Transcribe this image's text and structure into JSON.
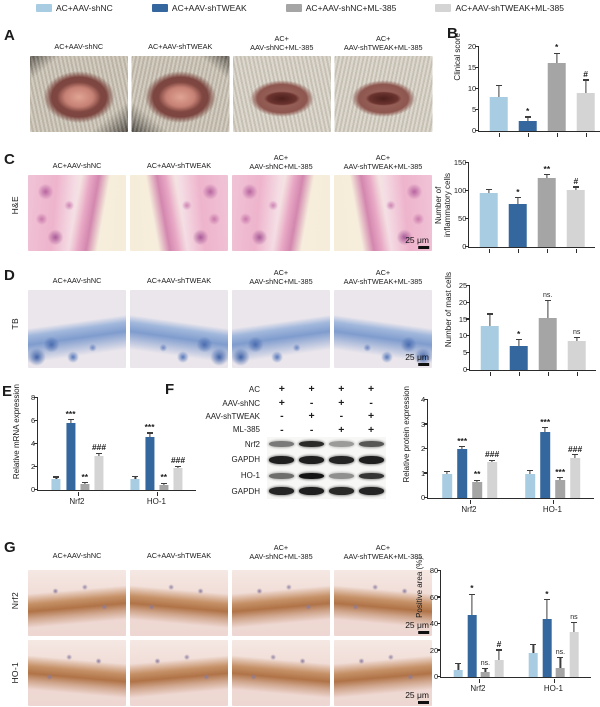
{
  "legend": {
    "items": [
      {
        "label": "AC+AAV-shNC",
        "color": "#a8cce2"
      },
      {
        "label": "AC+AAV-shTWEAK",
        "color": "#34679e"
      },
      {
        "label": "AC+AAV-shNC+ML-385",
        "color": "#a5a5a5"
      },
      {
        "label": "AC+AAV-shTWEAK+ML-385",
        "color": "#d4d4d4"
      }
    ]
  },
  "letters": {
    "A": "A",
    "B": "B",
    "C": "C",
    "D": "D",
    "E": "E",
    "F": "F",
    "G": "G"
  },
  "side_labels": {
    "he": "H&E",
    "tb": "TB",
    "g_row1": "Nrf2",
    "g_row2": "HO-1"
  },
  "columns": [
    {
      "top": "",
      "bottom": "AC+AAV-shNC"
    },
    {
      "top": "",
      "bottom": "AC+AAV-shTWEAK"
    },
    {
      "top": "AC+",
      "bottom": "AAV-shNC+ML-385"
    },
    {
      "top": "AC+",
      "bottom": "AAV-shTWEAK+ML-385"
    }
  ],
  "scale_bar": "25 μm",
  "wb": {
    "condition_rows": [
      {
        "name": "AC",
        "vals": [
          "+",
          "+",
          "+",
          "+"
        ]
      },
      {
        "name": "AAV-shNC",
        "vals": [
          "+",
          "-",
          "+",
          "-"
        ]
      },
      {
        "name": "AAV-shTWEAK",
        "vals": [
          "-",
          "+",
          "-",
          "+"
        ]
      },
      {
        "name": "ML-385",
        "vals": [
          "-",
          "-",
          "+",
          "+"
        ]
      }
    ],
    "blot_rows": [
      {
        "name": "Nrf2",
        "intensities": [
          0.55,
          0.9,
          0.4,
          0.7
        ],
        "gapdh": false
      },
      {
        "name": "GAPDH",
        "intensities": [
          0.95,
          0.95,
          0.92,
          0.95
        ],
        "gapdh": true
      },
      {
        "name": "HO-1",
        "intensities": [
          0.6,
          1.0,
          0.45,
          0.85
        ],
        "gapdh": false
      },
      {
        "name": "GAPDH",
        "intensities": [
          0.92,
          0.95,
          0.9,
          0.92
        ],
        "gapdh": true
      }
    ]
  },
  "chart_data": [
    {
      "id": "clinical_score",
      "panel": "B",
      "type": "bar",
      "title": "",
      "xlabel": "",
      "ylabel": "Clinical score",
      "ylim": [
        0,
        20
      ],
      "yticks": [
        0,
        5,
        10,
        15,
        20
      ],
      "categories": [
        ""
      ],
      "series": [
        {
          "name": "AC+AAV-shNC",
          "values": [
            8
          ],
          "errors": [
            2.7
          ],
          "sig": [
            ""
          ]
        },
        {
          "name": "AC+AAV-shTWEAK",
          "values": [
            2.4
          ],
          "errors": [
            0.8
          ],
          "sig": [
            "*"
          ]
        },
        {
          "name": "AC+AAV-shNC+ML-385",
          "values": [
            16.2
          ],
          "errors": [
            2.2
          ],
          "sig": [
            "*"
          ]
        },
        {
          "name": "AC+AAV-shTWEAK+ML-385",
          "values": [
            9
          ],
          "errors": [
            3
          ],
          "sig": [
            "#"
          ]
        }
      ]
    },
    {
      "id": "inflammatory",
      "panel": "C",
      "type": "bar",
      "title": "",
      "xlabel": "",
      "ylabel": "Number of inflammatory cells",
      "ylim": [
        0,
        150
      ],
      "yticks": [
        0,
        50,
        100,
        150
      ],
      "categories": [
        ""
      ],
      "series": [
        {
          "name": "AC+AAV-shNC",
          "values": [
            97
          ],
          "errors": [
            4
          ],
          "sig": [
            ""
          ]
        },
        {
          "name": "AC+AAV-shTWEAK",
          "values": [
            76
          ],
          "errors": [
            11
          ],
          "sig": [
            "*"
          ]
        },
        {
          "name": "AC+AAV-shNC+ML-385",
          "values": [
            123
          ],
          "errors": [
            5
          ],
          "sig": [
            "**"
          ]
        },
        {
          "name": "AC+AAV-shTWEAK+ML-385",
          "values": [
            101
          ],
          "errors": [
            5
          ],
          "sig": [
            "#"
          ]
        }
      ]
    },
    {
      "id": "mast",
      "panel": "D",
      "type": "bar",
      "title": "",
      "xlabel": "",
      "ylabel": "Number of mast cells",
      "ylim": [
        0,
        25
      ],
      "yticks": [
        0,
        5,
        10,
        15,
        20,
        25
      ],
      "categories": [
        ""
      ],
      "series": [
        {
          "name": "AC+AAV-shNC",
          "values": [
            13
          ],
          "errors": [
            3.5
          ],
          "sig": [
            ""
          ]
        },
        {
          "name": "AC+AAV-shTWEAK",
          "values": [
            7.2
          ],
          "errors": [
            1.7
          ],
          "sig": [
            "*"
          ]
        },
        {
          "name": "AC+AAV-shNC+ML-385",
          "values": [
            15.5
          ],
          "errors": [
            5
          ],
          "sig": [
            "ns."
          ]
        },
        {
          "name": "AC+AAV-shTWEAK+ML-385",
          "values": [
            8.5
          ],
          "errors": [
            1
          ],
          "sig": [
            "ns"
          ]
        }
      ]
    },
    {
      "id": "mrna",
      "panel": "E",
      "type": "bar",
      "title": "",
      "xlabel": "",
      "ylabel": "Relative mRNA expression",
      "ylim": [
        0,
        8
      ],
      "yticks": [
        0,
        2,
        4,
        6,
        8
      ],
      "categories": [
        "Nrf2",
        "HO-1"
      ],
      "series": [
        {
          "name": "AC+AAV-shNC",
          "values": [
            1.0,
            1.0
          ],
          "errors": [
            0.08,
            0.1
          ],
          "sig": [
            "",
            ""
          ]
        },
        {
          "name": "AC+AAV-shTWEAK",
          "values": [
            5.8,
            4.6
          ],
          "errors": [
            0.25,
            0.3
          ],
          "sig": [
            "***",
            "***"
          ]
        },
        {
          "name": "AC+AAV-shNC+ML-385",
          "values": [
            0.5,
            0.45
          ],
          "errors": [
            0.08,
            0.08
          ],
          "sig": [
            "**",
            "**"
          ]
        },
        {
          "name": "AC+AAV-shTWEAK+ML-385",
          "values": [
            3.0,
            1.9
          ],
          "errors": [
            0.15,
            0.12
          ],
          "sig": [
            "###",
            "###"
          ]
        }
      ]
    },
    {
      "id": "protein",
      "panel": "F",
      "type": "bar",
      "title": "",
      "xlabel": "",
      "ylabel": "Relative protein expression",
      "ylim": [
        0,
        4
      ],
      "yticks": [
        0,
        1,
        2,
        3,
        4
      ],
      "categories": [
        "Nrf2",
        "HO-1"
      ],
      "series": [
        {
          "name": "AC+AAV-shNC",
          "values": [
            1.0,
            1.0
          ],
          "errors": [
            0.06,
            0.1
          ],
          "sig": [
            "",
            ""
          ]
        },
        {
          "name": "AC+AAV-shTWEAK",
          "values": [
            2.0,
            2.7
          ],
          "errors": [
            0.07,
            0.15
          ],
          "sig": [
            "***",
            "***"
          ]
        },
        {
          "name": "AC+AAV-shNC+ML-385",
          "values": [
            0.65,
            0.75
          ],
          "errors": [
            0.05,
            0.06
          ],
          "sig": [
            "**",
            "***"
          ]
        },
        {
          "name": "AC+AAV-shTWEAK+ML-385",
          "values": [
            1.45,
            1.65
          ],
          "errors": [
            0.07,
            0.1
          ],
          "sig": [
            "###",
            "###"
          ]
        }
      ]
    },
    {
      "id": "positive_area",
      "panel": "G",
      "type": "bar",
      "title": "",
      "xlabel": "",
      "ylabel": "Positive area (%)",
      "ylim": [
        0,
        80
      ],
      "yticks": [
        0,
        20,
        40,
        60,
        80
      ],
      "categories": [
        "Nrf2",
        "HO-1"
      ],
      "series": [
        {
          "name": "AC+AAV-shNC",
          "values": [
            5,
            18
          ],
          "errors": [
            5,
            6
          ],
          "sig": [
            "",
            ""
          ]
        },
        {
          "name": "AC+AAV-shTWEAK",
          "values": [
            47,
            44
          ],
          "errors": [
            15,
            14
          ],
          "sig": [
            "*",
            "*"
          ]
        },
        {
          "name": "AC+AAV-shNC+ML-385",
          "values": [
            4,
            7
          ],
          "errors": [
            2,
            7
          ],
          "sig": [
            "ns.",
            "ns."
          ]
        },
        {
          "name": "AC+AAV-shTWEAK+ML-385",
          "values": [
            13,
            34
          ],
          "errors": [
            7,
            7
          ],
          "sig": [
            "#",
            "ns"
          ]
        }
      ]
    }
  ]
}
